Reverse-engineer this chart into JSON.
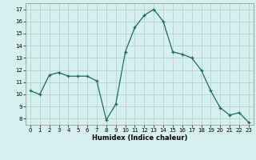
{
  "x": [
    0,
    1,
    2,
    3,
    4,
    5,
    6,
    7,
    8,
    9,
    10,
    11,
    12,
    13,
    14,
    15,
    16,
    17,
    18,
    19,
    20,
    21,
    22,
    23
  ],
  "y": [
    10.3,
    10.0,
    11.6,
    11.8,
    11.5,
    11.5,
    11.5,
    11.1,
    7.9,
    9.2,
    13.5,
    15.5,
    16.5,
    17.0,
    16.0,
    13.5,
    13.3,
    13.0,
    12.0,
    10.3,
    8.9,
    8.3,
    8.5,
    7.7
  ],
  "line_color": "#1a6b5a",
  "marker": "+",
  "bg_color": "#d6f0f0",
  "grid_color": "#b0c8c8",
  "xlabel": "Humidex (Indice chaleur)",
  "ylim": [
    7.5,
    17.5
  ],
  "xlim": [
    -0.5,
    23.5
  ],
  "yticks": [
    8,
    9,
    10,
    11,
    12,
    13,
    14,
    15,
    16,
    17
  ],
  "xticks": [
    0,
    1,
    2,
    3,
    4,
    5,
    6,
    7,
    8,
    9,
    10,
    11,
    12,
    13,
    14,
    15,
    16,
    17,
    18,
    19,
    20,
    21,
    22,
    23
  ]
}
